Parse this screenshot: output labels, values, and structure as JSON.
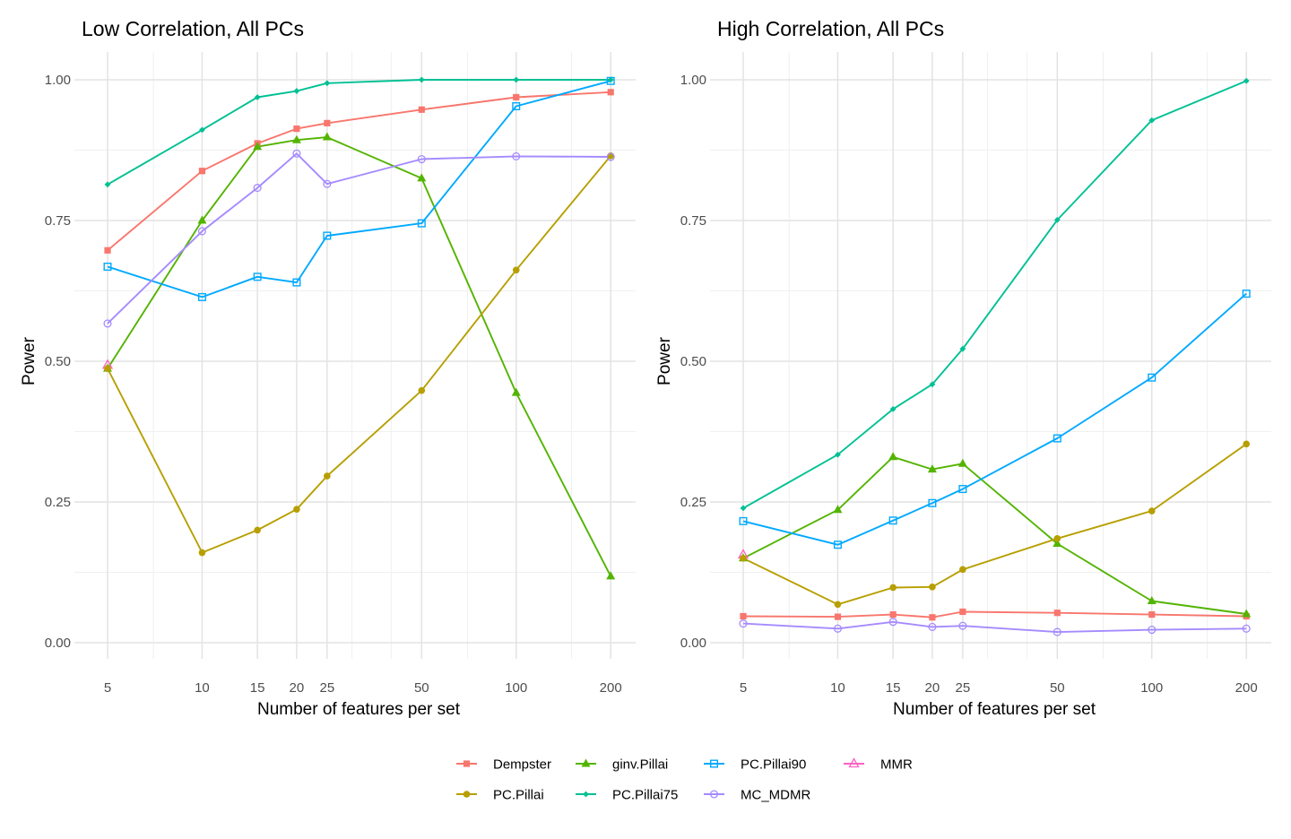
{
  "chart_data": [
    {
      "type": "line",
      "title": "Low Correlation, All PCs",
      "xlabel": "Number of features per set",
      "ylabel": "Power",
      "x_scale": "log",
      "x_ticks": [
        5,
        10,
        15,
        20,
        25,
        50,
        100,
        200
      ],
      "x_tick_labels": [
        "5",
        "10",
        "15",
        "20",
        "25",
        "50",
        "100",
        "200"
      ],
      "y_ticks": [
        0,
        0.25,
        0.5,
        0.75,
        1
      ],
      "y_tick_labels": [
        "0.00",
        "0.25",
        "0.50",
        "0.75",
        "1.00"
      ],
      "ylim": [
        0,
        1.04
      ],
      "grid": true,
      "series": [
        {
          "name": "Dempster",
          "x": [
            5,
            10,
            15,
            20,
            25,
            50,
            100,
            200
          ],
          "values": [
            0.697,
            0.838,
            0.887,
            0.913,
            0.923,
            0.947,
            0.969,
            0.978
          ]
        },
        {
          "name": "ginv.Pillai",
          "x": [
            5,
            10,
            15,
            20,
            25,
            50,
            100,
            200
          ],
          "values": [
            0.487,
            0.75,
            0.881,
            0.893,
            0.898,
            0.825,
            0.444,
            0.118
          ]
        },
        {
          "name": "PC.Pillai90",
          "x": [
            5,
            10,
            15,
            20,
            25,
            50,
            100,
            200
          ],
          "values": [
            0.668,
            0.614,
            0.65,
            0.64,
            0.723,
            0.745,
            0.953,
            0.998
          ]
        },
        {
          "name": "MMR",
          "x": [
            5
          ],
          "values": [
            0.493
          ]
        },
        {
          "name": "PC.Pillai",
          "x": [
            5,
            10,
            15,
            20,
            25,
            50,
            100,
            200
          ],
          "values": [
            0.487,
            0.16,
            0.2,
            0.237,
            0.296,
            0.448,
            0.662,
            0.865
          ]
        },
        {
          "name": "PC.Pillai75",
          "x": [
            5,
            10,
            15,
            20,
            25,
            50,
            100,
            200
          ],
          "values": [
            0.814,
            0.911,
            0.969,
            0.98,
            0.994,
            1.0,
            1.0,
            1.0
          ]
        },
        {
          "name": "MC_MDMR",
          "x": [
            5,
            10,
            15,
            20,
            25,
            50,
            100,
            200
          ],
          "values": [
            0.567,
            0.731,
            0.808,
            0.869,
            0.815,
            0.859,
            0.864,
            0.863
          ]
        }
      ]
    },
    {
      "type": "line",
      "title": "High Correlation, All PCs",
      "xlabel": "Number of features per set",
      "ylabel": "Power",
      "x_scale": "log",
      "x_ticks": [
        5,
        10,
        15,
        20,
        25,
        50,
        100,
        200
      ],
      "x_tick_labels": [
        "5",
        "10",
        "15",
        "20",
        "25",
        "50",
        "100",
        "200"
      ],
      "y_ticks": [
        0,
        0.25,
        0.5,
        0.75,
        1
      ],
      "y_tick_labels": [
        "0.00",
        "0.25",
        "0.50",
        "0.75",
        "1.00"
      ],
      "ylim": [
        0,
        1.04
      ],
      "grid": true,
      "series": [
        {
          "name": "Dempster",
          "x": [
            5,
            10,
            15,
            20,
            25,
            50,
            100,
            200
          ],
          "values": [
            0.047,
            0.046,
            0.05,
            0.045,
            0.055,
            0.053,
            0.05,
            0.047
          ]
        },
        {
          "name": "ginv.Pillai",
          "x": [
            5,
            10,
            15,
            20,
            25,
            50,
            100,
            200
          ],
          "values": [
            0.15,
            0.236,
            0.33,
            0.308,
            0.318,
            0.176,
            0.074,
            0.051
          ]
        },
        {
          "name": "PC.Pillai90",
          "x": [
            5,
            10,
            15,
            20,
            25,
            50,
            100,
            200
          ],
          "values": [
            0.216,
            0.174,
            0.217,
            0.248,
            0.273,
            0.363,
            0.471,
            0.62
          ]
        },
        {
          "name": "MMR",
          "x": [
            5
          ],
          "values": [
            0.156
          ]
        },
        {
          "name": "PC.Pillai",
          "x": [
            5,
            10,
            15,
            20,
            25,
            50,
            100,
            200
          ],
          "values": [
            0.15,
            0.068,
            0.098,
            0.099,
            0.13,
            0.185,
            0.234,
            0.353
          ]
        },
        {
          "name": "PC.Pillai75",
          "x": [
            5,
            10,
            15,
            20,
            25,
            50,
            100,
            200
          ],
          "values": [
            0.239,
            0.334,
            0.415,
            0.459,
            0.522,
            0.751,
            0.928,
            0.998
          ]
        },
        {
          "name": "MC_MDMR",
          "x": [
            5,
            10,
            15,
            20,
            25,
            50,
            100,
            200
          ],
          "values": [
            0.034,
            0.025,
            0.037,
            0.028,
            0.03,
            0.019,
            0.023,
            0.025
          ]
        }
      ]
    }
  ],
  "legend": {
    "placement": "bottom",
    "items": [
      {
        "name": "Dempster",
        "color": "#F8766D",
        "marker": "square-filled"
      },
      {
        "name": "ginv.Pillai",
        "color": "#53B400",
        "marker": "triangle-filled"
      },
      {
        "name": "PC.Pillai90",
        "color": "#00A9FF",
        "marker": "square-open"
      },
      {
        "name": "MMR",
        "color": "#FF61C3",
        "marker": "triangle-open"
      },
      {
        "name": "PC.Pillai",
        "color": "#B79F00",
        "marker": "circle-filled"
      },
      {
        "name": "PC.Pillai75",
        "color": "#00C094",
        "marker": "diamond-filled"
      },
      {
        "name": "MC_MDMR",
        "color": "#A58AFF",
        "marker": "circle-open"
      }
    ]
  }
}
